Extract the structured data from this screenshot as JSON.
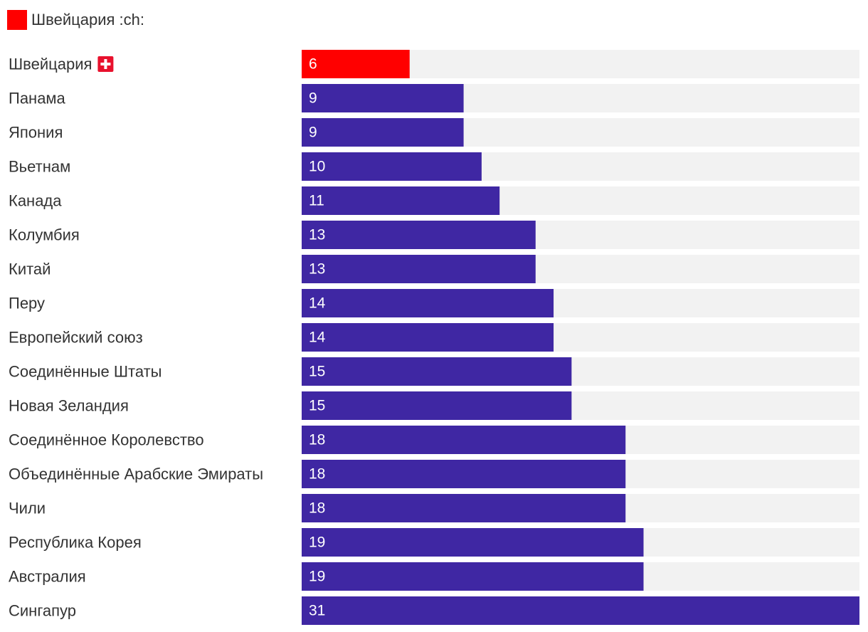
{
  "legend": {
    "label": "Швейцария :ch:",
    "color": "#ff0000"
  },
  "colors": {
    "highlight": "#ff0000",
    "bar": "#3f27a3",
    "track": "#f2f2f2"
  },
  "highlight_icon": "swiss-flag-icon",
  "chart_data": {
    "type": "bar",
    "orientation": "horizontal",
    "title": "",
    "xlabel": "",
    "ylabel": "",
    "xlim": [
      0,
      31
    ],
    "grid": false,
    "legend_position": "top-left",
    "highlight_index": 0,
    "categories": [
      "Швейцария",
      "Панама",
      "Япония",
      "Вьетнам",
      "Канада",
      "Колумбия",
      "Китай",
      "Перу",
      "Европейский союз",
      "Соединённые Штаты",
      "Новая Зеландия",
      "Соединённое Королевство",
      "Объединённые Арабские Эмираты",
      "Чили",
      "Республика Корея",
      "Австралия",
      "Сингапур"
    ],
    "values": [
      6,
      9,
      9,
      10,
      11,
      13,
      13,
      14,
      14,
      15,
      15,
      18,
      18,
      18,
      19,
      19,
      31
    ]
  }
}
